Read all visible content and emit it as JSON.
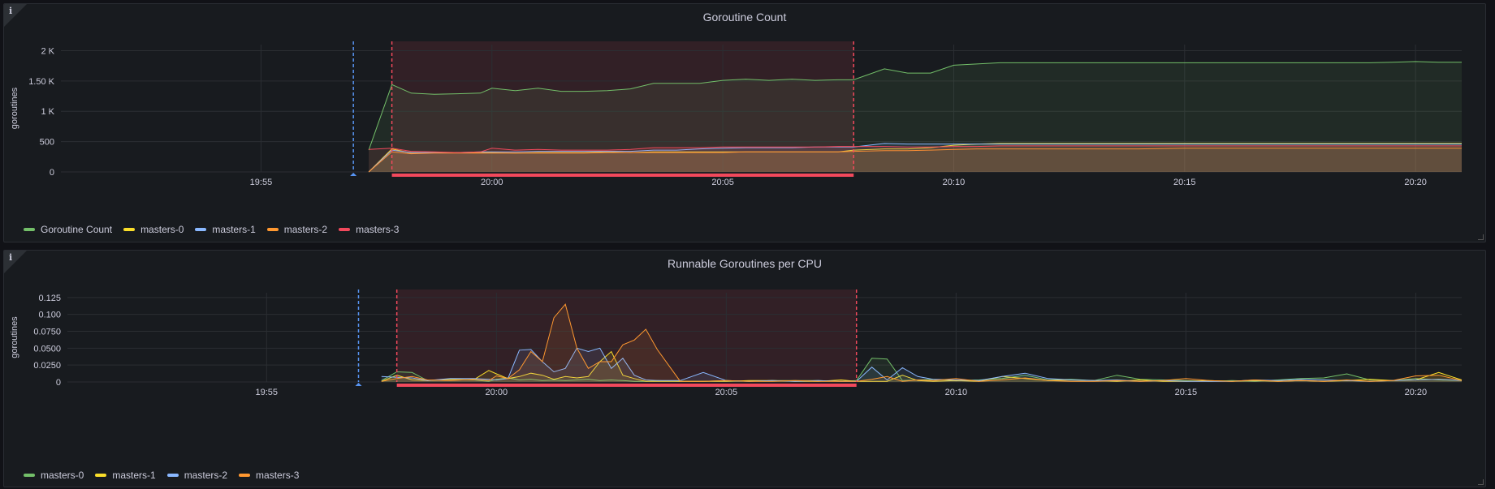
{
  "colors": {
    "green": "#73bf69",
    "yellow": "#fade2a",
    "blue": "#8ab8ff",
    "orange": "#ff9830",
    "red": "#f2495c",
    "annotation_blue": "#5794f2",
    "annotation_red": "#f2495c"
  },
  "info_glyph": "i",
  "chart_data": [
    {
      "type": "area",
      "title": "Goroutine Count",
      "ylabel": "goroutines",
      "xlabel": "",
      "x_ticks": [
        "19:55",
        "20:00",
        "20:05",
        "20:10",
        "20:15",
        "20:20"
      ],
      "y_ticks": [
        "0",
        "500",
        "1 K",
        "1.50 K",
        "2 K"
      ],
      "xlim": [
        "19:50:40",
        "20:21:00"
      ],
      "ylim": [
        0,
        2100
      ],
      "grid": true,
      "legend_position": "bottom-left",
      "annotations": {
        "point": "19:57:00",
        "region": [
          "19:57:50",
          "20:07:50"
        ]
      },
      "x": [
        "19:57:20",
        "19:57:50",
        "19:58:15",
        "19:58:45",
        "19:59:15",
        "19:59:45",
        "20:00:00",
        "20:00:30",
        "20:01:00",
        "20:01:30",
        "20:02:00",
        "20:02:30",
        "20:03:00",
        "20:03:30",
        "20:04:00",
        "20:04:30",
        "20:05:00",
        "20:05:30",
        "20:06:00",
        "20:06:30",
        "20:07:00",
        "20:07:30",
        "20:07:50",
        "20:08:30",
        "20:09:00",
        "20:09:30",
        "20:10:00",
        "20:10:30",
        "20:11:00",
        "20:12:00",
        "20:13:00",
        "20:14:00",
        "20:15:00",
        "20:16:00",
        "20:17:00",
        "20:18:00",
        "20:19:00",
        "20:19:30",
        "20:20:00",
        "20:20:30",
        "20:21:00"
      ],
      "series": [
        {
          "name": "Goroutine Count",
          "color_key": "green",
          "values": [
            360,
            1440,
            1300,
            1280,
            1290,
            1300,
            1380,
            1340,
            1380,
            1330,
            1330,
            1340,
            1370,
            1460,
            1460,
            1460,
            1510,
            1530,
            1510,
            1530,
            1510,
            1520,
            1520,
            1700,
            1630,
            1630,
            1760,
            1780,
            1800,
            1800,
            1800,
            1800,
            1800,
            1800,
            1800,
            1800,
            1800,
            1810,
            1820,
            1810,
            1810
          ]
        },
        {
          "name": "masters-0",
          "color_key": "yellow",
          "values": [
            0,
            380,
            310,
            320,
            320,
            320,
            320,
            310,
            320,
            320,
            320,
            330,
            320,
            330,
            330,
            330,
            330,
            330,
            330,
            330,
            330,
            330,
            360,
            380,
            380,
            400,
            440,
            460,
            470,
            470,
            470,
            470,
            470,
            470,
            470,
            470,
            470,
            470,
            470,
            470,
            470
          ]
        },
        {
          "name": "masters-1",
          "color_key": "blue",
          "values": [
            0,
            360,
            320,
            320,
            320,
            330,
            330,
            330,
            340,
            340,
            340,
            340,
            340,
            360,
            360,
            380,
            390,
            400,
            400,
            400,
            410,
            410,
            410,
            470,
            460,
            460,
            460,
            460,
            460,
            460,
            460,
            460,
            460,
            460,
            460,
            460,
            460,
            460,
            460,
            460,
            460
          ]
        },
        {
          "name": "masters-2",
          "color_key": "orange",
          "values": [
            0,
            330,
            300,
            310,
            310,
            310,
            310,
            310,
            310,
            310,
            310,
            320,
            320,
            320,
            320,
            320,
            320,
            330,
            330,
            330,
            330,
            330,
            340,
            350,
            350,
            360,
            370,
            380,
            380,
            380,
            380,
            380,
            390,
            390,
            390,
            390,
            390,
            390,
            390,
            390,
            390
          ]
        },
        {
          "name": "masters-3",
          "color_key": "red",
          "values": [
            370,
            390,
            340,
            330,
            320,
            330,
            390,
            360,
            370,
            360,
            360,
            360,
            370,
            400,
            400,
            400,
            410,
            410,
            410,
            410,
            410,
            420,
            420,
            420,
            410,
            410,
            420,
            420,
            430,
            430,
            430,
            430,
            430,
            430,
            430,
            430,
            430,
            430,
            430,
            430,
            430
          ]
        }
      ]
    },
    {
      "type": "area",
      "title": "Runnable Goroutines per CPU",
      "ylabel": "goroutines",
      "xlabel": "",
      "x_ticks": [
        "19:55",
        "20:00",
        "20:05",
        "20:10",
        "20:15",
        "20:20"
      ],
      "y_ticks": [
        "0",
        "0.0250",
        "0.0500",
        "0.0750",
        "0.100",
        "0.125"
      ],
      "xlim": [
        "19:50:40",
        "20:21:00"
      ],
      "ylim": [
        0,
        0.132
      ],
      "grid": true,
      "legend_position": "bottom-left",
      "annotations": {
        "point": "19:57:00",
        "region": [
          "19:57:50",
          "20:07:50"
        ]
      },
      "x": [
        "19:57:30",
        "19:57:50",
        "19:58:10",
        "19:58:30",
        "19:59:00",
        "19:59:30",
        "19:59:50",
        "20:00:00",
        "20:00:15",
        "20:00:30",
        "20:00:45",
        "20:01:00",
        "20:01:15",
        "20:01:30",
        "20:01:45",
        "20:02:00",
        "20:02:15",
        "20:02:30",
        "20:02:45",
        "20:03:00",
        "20:03:15",
        "20:03:30",
        "20:04:00",
        "20:04:30",
        "20:05:00",
        "20:05:30",
        "20:06:00",
        "20:06:30",
        "20:07:00",
        "20:07:30",
        "20:07:50",
        "20:08:10",
        "20:08:30",
        "20:08:50",
        "20:09:10",
        "20:09:30",
        "20:10:00",
        "20:10:30",
        "20:11:00",
        "20:11:30",
        "20:12:00",
        "20:12:30",
        "20:13:00",
        "20:13:30",
        "20:14:00",
        "20:14:30",
        "20:15:00",
        "20:15:30",
        "20:16:00",
        "20:16:30",
        "20:17:00",
        "20:17:30",
        "20:18:00",
        "20:18:30",
        "20:19:00",
        "20:19:30",
        "20:20:00",
        "20:20:30",
        "20:21:00"
      ],
      "series": [
        {
          "name": "masters-0",
          "color_key": "green",
          "values": [
            0.002,
            0.015,
            0.014,
            0.002,
            0.004,
            0.003,
            0.001,
            0.004,
            0.006,
            0.003,
            0.004,
            0.002,
            0.003,
            0.002,
            0.003,
            0.004,
            0.002,
            0.003,
            0.002,
            0.001,
            0.001,
            0.002,
            0.001,
            0.001,
            0.002,
            0.001,
            0.002,
            0.002,
            0.002,
            0.001,
            0.002,
            0.035,
            0.034,
            0.002,
            0.003,
            0.004,
            0.002,
            0.003,
            0.005,
            0.01,
            0.003,
            0.004,
            0.002,
            0.01,
            0.004,
            0.003,
            0.002,
            0.001,
            0.002,
            0.001,
            0.003,
            0.005,
            0.006,
            0.012,
            0.003,
            0.002,
            0.005,
            0.003,
            0.002
          ]
        },
        {
          "name": "masters-1",
          "color_key": "yellow",
          "values": [
            0.001,
            0.01,
            0.003,
            0.002,
            0.004,
            0.003,
            0.017,
            0.012,
            0.005,
            0.008,
            0.013,
            0.01,
            0.004,
            0.008,
            0.006,
            0.008,
            0.03,
            0.045,
            0.01,
            0.005,
            0.001,
            0.001,
            0.001,
            0.001,
            0.001,
            0.002,
            0.002,
            0.001,
            0.001,
            0.003,
            0.001,
            0.001,
            0.001,
            0.01,
            0.002,
            0.001,
            0.002,
            0.001,
            0.008,
            0.005,
            0.002,
            0.003,
            0.002,
            0.001,
            0.003,
            0.001,
            0.001,
            0.002,
            0.001,
            0.002,
            0.001,
            0.002,
            0.001,
            0.002,
            0.004,
            0.002,
            0.003,
            0.014,
            0.003
          ]
        },
        {
          "name": "masters-2",
          "color_key": "blue",
          "values": [
            0.008,
            0.007,
            0.006,
            0.002,
            0.005,
            0.005,
            0.004,
            0.003,
            0.005,
            0.047,
            0.048,
            0.03,
            0.015,
            0.02,
            0.05,
            0.045,
            0.05,
            0.02,
            0.035,
            0.01,
            0.003,
            0.002,
            0.002,
            0.014,
            0.002,
            0.001,
            0.002,
            0.001,
            0.002,
            0.001,
            0.001,
            0.022,
            0.003,
            0.021,
            0.008,
            0.004,
            0.003,
            0.002,
            0.008,
            0.013,
            0.005,
            0.003,
            0.002,
            0.003,
            0.001,
            0.002,
            0.001,
            0.001,
            0.001,
            0.003,
            0.002,
            0.004,
            0.003,
            0.002,
            0.001,
            0.002,
            0.003,
            0.004,
            0.002
          ]
        },
        {
          "name": "masters-3",
          "color_key": "orange",
          "values": [
            0.001,
            0.005,
            0.008,
            0.003,
            0.002,
            0.004,
            0.002,
            0.009,
            0.005,
            0.018,
            0.045,
            0.03,
            0.095,
            0.115,
            0.05,
            0.02,
            0.03,
            0.03,
            0.055,
            0.062,
            0.078,
            0.048,
            0.001,
            0.001,
            0.002,
            0.001,
            0.001,
            0.002,
            0.001,
            0.001,
            0.001,
            0.004,
            0.008,
            0.001,
            0.003,
            0.002,
            0.005,
            0.001,
            0.003,
            0.006,
            0.002,
            0.001,
            0.001,
            0.002,
            0.001,
            0.002,
            0.005,
            0.002,
            0.001,
            0.003,
            0.001,
            0.002,
            0.001,
            0.003,
            0.001,
            0.002,
            0.009,
            0.01,
            0.002
          ]
        }
      ]
    }
  ]
}
